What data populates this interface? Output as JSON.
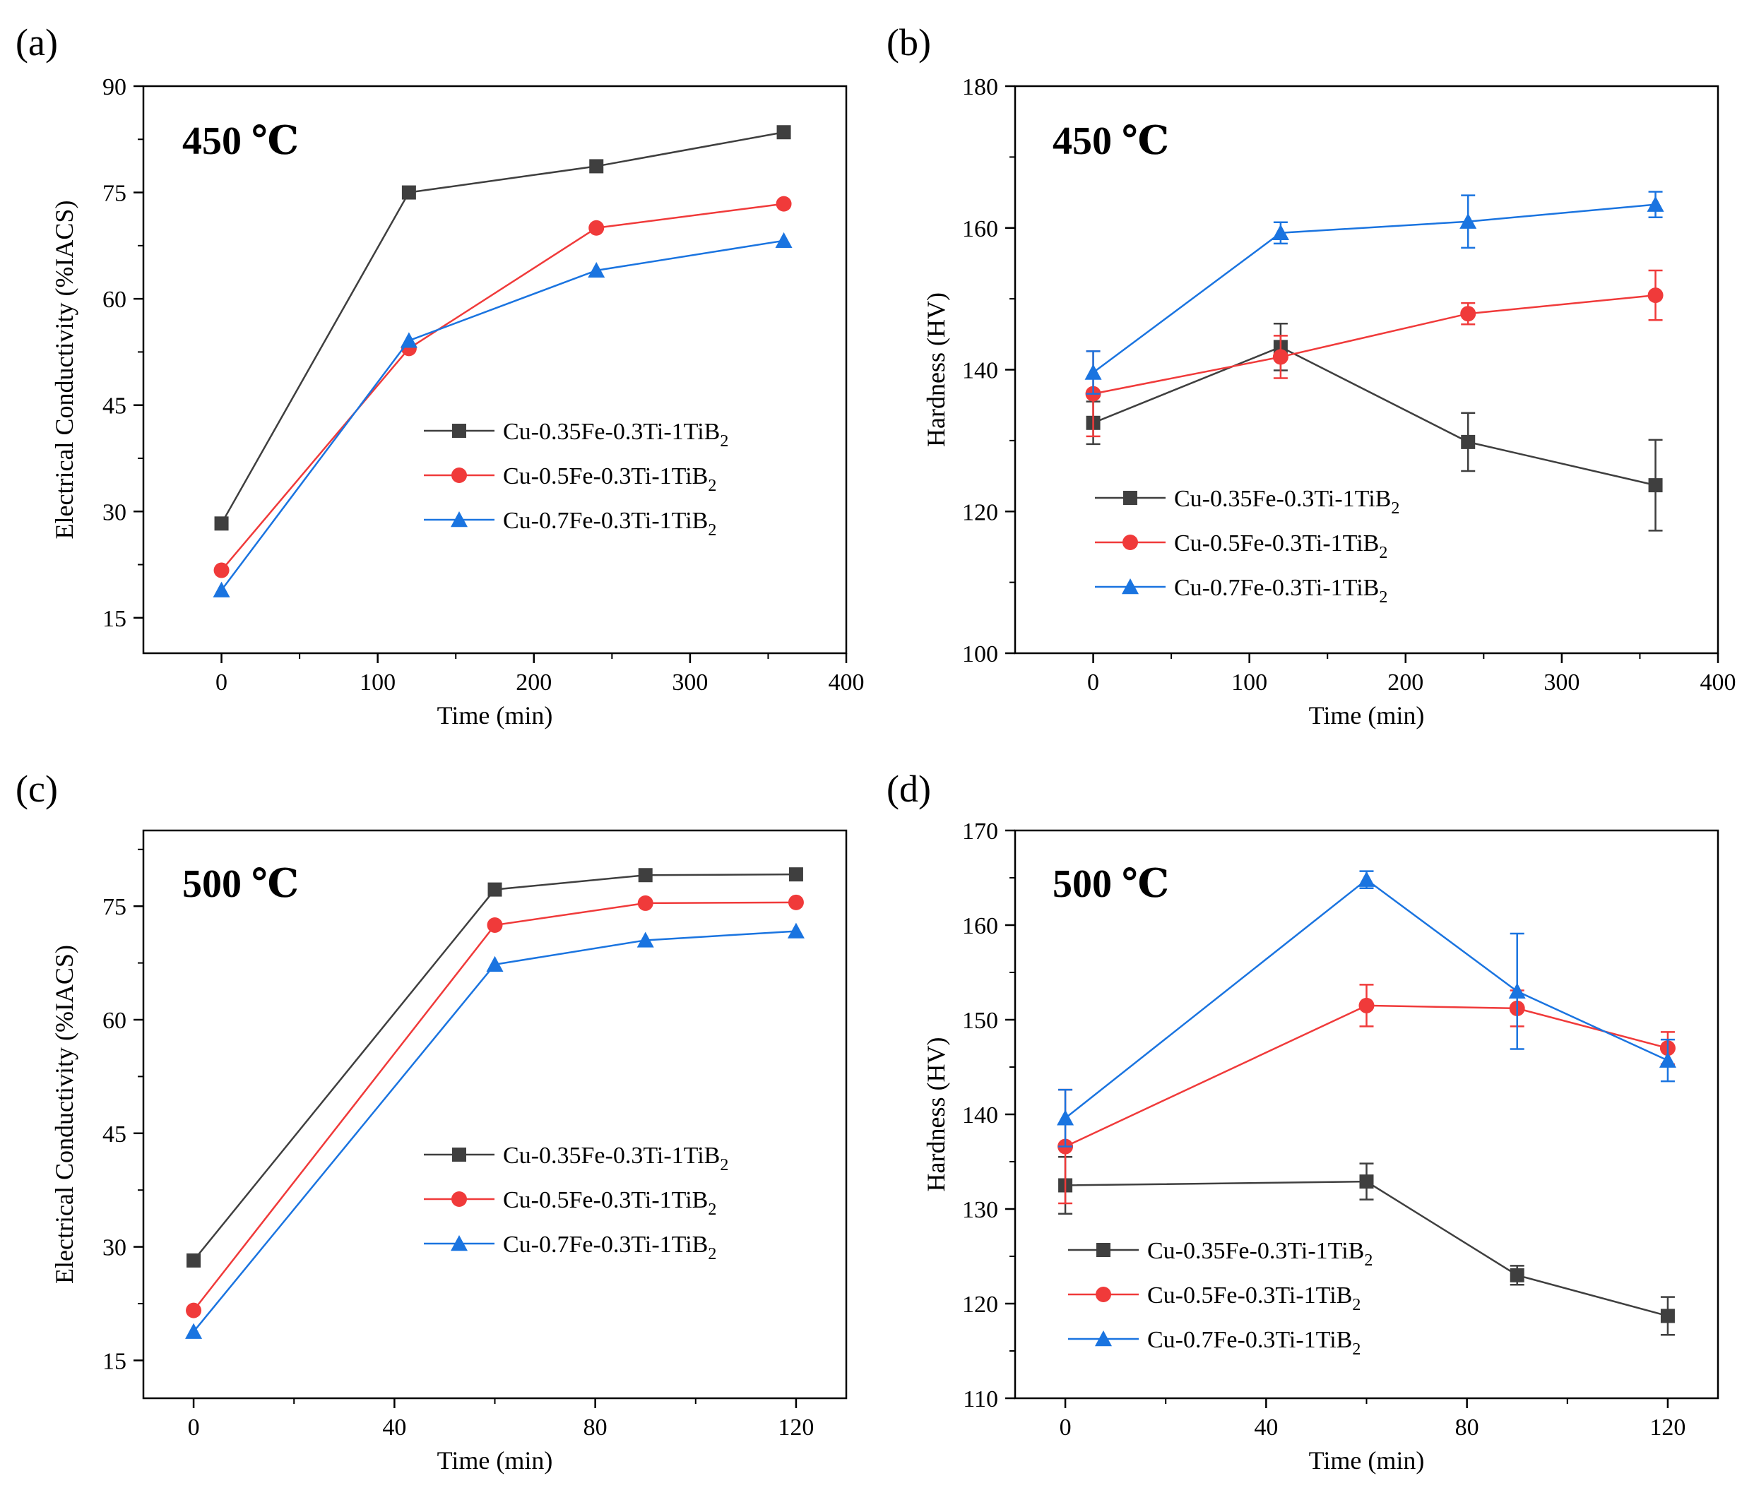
{
  "figure": {
    "background": "#ffffff"
  },
  "series_styles": [
    {
      "name": "Cu-0.35Fe-0.3Ti-1TiB",
      "sub": "2",
      "color": "#3f3f3f",
      "marker": "square"
    },
    {
      "name": "Cu-0.5Fe-0.3Ti-1TiB",
      "sub": "2",
      "color": "#f03a3a",
      "marker": "circle"
    },
    {
      "name": "Cu-0.7Fe-0.3Ti-1TiB",
      "sub": "2",
      "color": "#1a74e0",
      "marker": "triangle"
    }
  ],
  "chart_data": [
    {
      "panel_label": "(a)",
      "type": "line",
      "annotation": "450 ℃",
      "xlabel": "Time (min)",
      "ylabel": "Electrical Conductivity (%IACS)",
      "xlim": [
        -50,
        400
      ],
      "ylim": [
        10,
        90
      ],
      "xticks": [
        0,
        100,
        200,
        300,
        400
      ],
      "yticks": [
        15,
        30,
        45,
        60,
        75,
        90
      ],
      "legend": "center-right",
      "x": [
        0,
        120,
        240,
        360
      ],
      "series": [
        {
          "name": "Cu-0.35Fe-0.3Ti-1TiB2",
          "values": [
            28.3,
            75.0,
            78.7,
            83.5
          ]
        },
        {
          "name": "Cu-0.5Fe-0.3Ti-1TiB2",
          "values": [
            21.7,
            53.0,
            70.0,
            73.4
          ]
        },
        {
          "name": "Cu-0.7Fe-0.3Ti-1TiB2",
          "values": [
            18.9,
            54.1,
            64.0,
            68.2
          ]
        }
      ]
    },
    {
      "panel_label": "(b)",
      "type": "line",
      "annotation": "450 ℃",
      "xlabel": "Time (min)",
      "ylabel": "Hardness (HV)",
      "xlim": [
        -50,
        400
      ],
      "ylim": [
        100,
        180
      ],
      "xticks": [
        0,
        100,
        200,
        300,
        400
      ],
      "yticks": [
        100,
        120,
        140,
        160,
        180
      ],
      "legend": "lower-left",
      "x": [
        0,
        120,
        240,
        360
      ],
      "series": [
        {
          "name": "Cu-0.35Fe-0.3Ti-1TiB2",
          "values": [
            132.5,
            143.2,
            129.8,
            123.7
          ],
          "errors": [
            3.0,
            3.3,
            4.1,
            6.4
          ]
        },
        {
          "name": "Cu-0.5Fe-0.3Ti-1TiB2",
          "values": [
            136.6,
            141.8,
            147.9,
            150.5
          ],
          "errors": [
            6.0,
            3.0,
            1.5,
            3.5
          ]
        },
        {
          "name": "Cu-0.7Fe-0.3Ti-1TiB2",
          "values": [
            139.6,
            159.3,
            160.9,
            163.3
          ],
          "errors": [
            3.0,
            1.5,
            3.7,
            1.8
          ]
        }
      ]
    },
    {
      "panel_label": "(c)",
      "type": "line",
      "annotation": "500 ℃",
      "xlabel": "Time (min)",
      "ylabel": "Electrical Conductivity (%IACS)",
      "xlim": [
        -10,
        130
      ],
      "ylim": [
        10,
        85
      ],
      "xticks": [
        0,
        40,
        80,
        120
      ],
      "yticks": [
        15,
        30,
        45,
        60,
        75
      ],
      "legend": "center-right",
      "x": [
        0,
        60,
        90,
        120
      ],
      "series": [
        {
          "name": "Cu-0.35Fe-0.3Ti-1TiB2",
          "values": [
            28.2,
            77.2,
            79.1,
            79.2
          ]
        },
        {
          "name": "Cu-0.5Fe-0.3Ti-1TiB2",
          "values": [
            21.6,
            72.5,
            75.4,
            75.5
          ]
        },
        {
          "name": "Cu-0.7Fe-0.3Ti-1TiB2",
          "values": [
            18.8,
            67.3,
            70.5,
            71.7
          ]
        }
      ]
    },
    {
      "panel_label": "(d)",
      "type": "line",
      "annotation": "500 ℃",
      "xlabel": "Time (min)",
      "ylabel": "Hardness (HV)",
      "xlim": [
        -10,
        130
      ],
      "ylim": [
        110,
        170
      ],
      "xticks": [
        0,
        40,
        80,
        120
      ],
      "yticks": [
        110,
        120,
        130,
        140,
        150,
        160,
        170
      ],
      "legend": "lower-left",
      "x": [
        0,
        60,
        90,
        120
      ],
      "series": [
        {
          "name": "Cu-0.35Fe-0.3Ti-1TiB2",
          "values": [
            132.5,
            132.9,
            123.0,
            118.7
          ],
          "errors": [
            3.0,
            1.9,
            1.0,
            2.0
          ]
        },
        {
          "name": "Cu-0.5Fe-0.3Ti-1TiB2",
          "values": [
            136.6,
            151.5,
            151.2,
            147.0
          ],
          "errors": [
            6.0,
            2.2,
            1.9,
            1.7
          ]
        },
        {
          "name": "Cu-0.7Fe-0.3Ti-1TiB2",
          "values": [
            139.6,
            164.8,
            153.0,
            145.7
          ],
          "errors": [
            3.0,
            0.9,
            6.1,
            2.2
          ]
        }
      ]
    }
  ]
}
